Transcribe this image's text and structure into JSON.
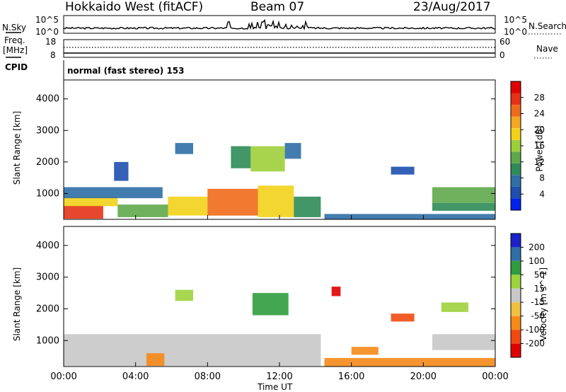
{
  "header": {
    "radar": "Hokkaido West (fitACF)",
    "beam": "Beam 07",
    "date": "23/Aug/2017"
  },
  "noise_panel": {
    "left_label": "N.Sky",
    "right_label": "N.Search",
    "axis_top": "10^5",
    "axis_bottom": "10^0"
  },
  "freq_panel": {
    "left_label_line1": "Freq.",
    "left_label_line2": "[MHz]",
    "left_top": "18",
    "left_bottom": "8",
    "right_top": "60",
    "right_bottom": "0",
    "right_label": "Nave"
  },
  "cpid": {
    "label": "CPID",
    "value": "normal (fast stereo) 153"
  },
  "x_axis": {
    "label": "Time UT",
    "ticks": [
      "00:00",
      "04:00",
      "08:00",
      "12:00",
      "16:00",
      "20:00",
      "00:00"
    ]
  },
  "colors": {
    "power": [
      "#0022ee",
      "#1e4fb0",
      "#2f6fa6",
      "#2e8b57",
      "#5fa84a",
      "#9ecf3a",
      "#f2d21a",
      "#f5a623",
      "#ef6a1a",
      "#e43317",
      "#e00000"
    ],
    "velocity": [
      "#e00000",
      "#f04a12",
      "#f58a18",
      "#f2c040",
      "#c8c8c8",
      "#9ed23c",
      "#2f9d3e",
      "#2e6fa6",
      "#1a22c8"
    ]
  },
  "chart_data": [
    {
      "type": "heatmap",
      "name": "power",
      "ylabel": "Slant Range [km]",
      "xlabel": "",
      "ylim": [
        180,
        4600
      ],
      "yticks": [
        "1000",
        "2000",
        "3000",
        "4000"
      ],
      "ytick_values": [
        1000,
        2000,
        3000,
        4000
      ],
      "colorbar_label": "Power [dB]",
      "colorbar_ticks": [
        "4",
        "8",
        "12",
        "16",
        "20",
        "24",
        "28"
      ],
      "colorbar_range": [
        0,
        32
      ],
      "x_range_hours": [
        0,
        24
      ],
      "regions": [
        {
          "t0": 0.0,
          "t1": 2.2,
          "r0": 200,
          "r1": 620,
          "value": 27
        },
        {
          "t0": 0.0,
          "t1": 3.0,
          "r0": 600,
          "r1": 900,
          "value": 18
        },
        {
          "t0": 0.0,
          "t1": 5.5,
          "r0": 850,
          "r1": 1200,
          "value": 6
        },
        {
          "t0": 3.0,
          "t1": 5.8,
          "r0": 250,
          "r1": 650,
          "value": 14
        },
        {
          "t0": 5.8,
          "t1": 8.0,
          "r0": 300,
          "r1": 900,
          "value": 18
        },
        {
          "t0": 8.0,
          "t1": 10.8,
          "r0": 300,
          "r1": 1150,
          "value": 26
        },
        {
          "t0": 10.8,
          "t1": 12.8,
          "r0": 250,
          "r1": 1250,
          "value": 19
        },
        {
          "t0": 12.8,
          "t1": 14.3,
          "r0": 250,
          "r1": 900,
          "value": 10
        },
        {
          "t0": 6.2,
          "t1": 7.2,
          "r0": 2250,
          "r1": 2600,
          "value": 6
        },
        {
          "t0": 9.3,
          "t1": 10.4,
          "r0": 1800,
          "r1": 2500,
          "value": 10
        },
        {
          "t0": 10.4,
          "t1": 12.3,
          "r0": 1700,
          "r1": 2500,
          "value": 17
        },
        {
          "t0": 12.3,
          "t1": 13.2,
          "r0": 2100,
          "r1": 2600,
          "value": 8
        },
        {
          "t0": 2.8,
          "t1": 3.6,
          "r0": 1400,
          "r1": 2000,
          "value": 5
        },
        {
          "t0": 14.5,
          "t1": 24.0,
          "r0": 180,
          "r1": 350,
          "value": 7
        },
        {
          "t0": 18.2,
          "t1": 19.5,
          "r0": 1600,
          "r1": 1850,
          "value": 4
        },
        {
          "t0": 20.5,
          "t1": 24.0,
          "r0": 700,
          "r1": 1200,
          "value": 14
        },
        {
          "t0": 20.5,
          "t1": 24.0,
          "r0": 450,
          "r1": 700,
          "value": 9
        }
      ]
    },
    {
      "type": "heatmap",
      "name": "velocity",
      "ylabel": "Slant Range [km]",
      "xlabel": "Time UT",
      "ylim": [
        180,
        4600
      ],
      "yticks": [
        "1000",
        "2000",
        "3000",
        "4000"
      ],
      "ytick_values": [
        1000,
        2000,
        3000,
        4000
      ],
      "colorbar_label": "Velocity [m s^-1]",
      "colorbar_ticks": [
        "200",
        "100",
        "50",
        "15",
        "-15",
        "-50",
        "-100",
        "-200"
      ],
      "colorbar_range": [
        -250,
        250
      ],
      "x_range_hours": [
        0,
        24
      ],
      "regions": [
        {
          "t0": 0.0,
          "t1": 14.3,
          "r0": 200,
          "r1": 1200,
          "value": 0
        },
        {
          "t0": 4.6,
          "t1": 5.6,
          "r0": 200,
          "r1": 600,
          "value": -60
        },
        {
          "t0": 10.5,
          "t1": 12.5,
          "r0": 1800,
          "r1": 2500,
          "value": 60
        },
        {
          "t0": 6.2,
          "t1": 7.2,
          "r0": 2250,
          "r1": 2600,
          "value": 30
        },
        {
          "t0": 14.5,
          "t1": 24.0,
          "r0": 180,
          "r1": 450,
          "value": -70
        },
        {
          "t0": 16.0,
          "t1": 17.5,
          "r0": 550,
          "r1": 800,
          "value": -90
        },
        {
          "t0": 18.2,
          "t1": 19.5,
          "r0": 1600,
          "r1": 1850,
          "value": -120
        },
        {
          "t0": 14.9,
          "t1": 15.4,
          "r0": 2400,
          "r1": 2700,
          "value": -220
        },
        {
          "t0": 20.5,
          "t1": 24.0,
          "r0": 700,
          "r1": 1200,
          "value": 0
        },
        {
          "t0": 21.0,
          "t1": 22.5,
          "r0": 1900,
          "r1": 2200,
          "value": 40
        }
      ]
    }
  ]
}
